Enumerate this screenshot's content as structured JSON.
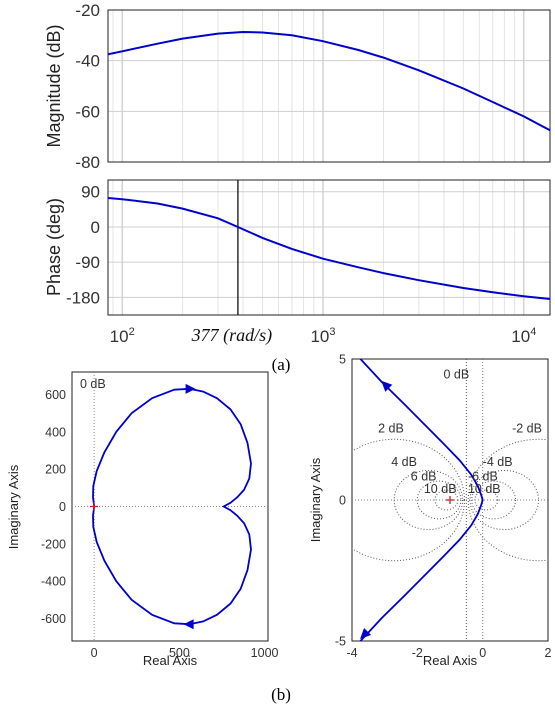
{
  "colors": {
    "curve": "#0000CC",
    "critical": "#cc2222",
    "grid": "#cfcfcf",
    "axis": "#222222"
  },
  "captions": {
    "a": "(a)",
    "b": "(b)"
  },
  "chart_data": [
    {
      "id": "bode-magnitude",
      "type": "line",
      "ylabel": "Magnitude (dB)",
      "ylim": [
        -80,
        -20
      ],
      "yticks": [
        "-20",
        "-40",
        "-60",
        "-80"
      ],
      "xscale": "log",
      "xlim": [
        85,
        13500
      ],
      "grid": true,
      "series": [
        {
          "x": [
            85,
            100,
            150,
            200,
            300,
            400,
            500,
            700,
            1000,
            1500,
            2000,
            3000,
            5000,
            7000,
            10000,
            13500
          ],
          "y": [
            -37.5,
            -36.3,
            -33.3,
            -31.3,
            -29.3,
            -28.7,
            -28.9,
            -30.0,
            -32.3,
            -35.8,
            -38.8,
            -43.8,
            -51.0,
            -56.3,
            -62.0,
            -67.5
          ]
        }
      ]
    },
    {
      "id": "bode-phase",
      "type": "line",
      "ylabel": "Phase (deg)",
      "ylim": [
        -225,
        120
      ],
      "yticks": [
        "90",
        "0",
        "-90",
        "-180"
      ],
      "xscale": "log",
      "xlim": [
        85,
        13500
      ],
      "xticks": [
        {
          "base": "10",
          "exp": "2"
        },
        {
          "base": "10",
          "exp": "3"
        },
        {
          "base": "10",
          "exp": "4"
        }
      ],
      "grid": true,
      "annotation": {
        "x": 377,
        "text": "377 (rad/s)"
      },
      "series": [
        {
          "x": [
            85,
            100,
            150,
            200,
            300,
            377,
            500,
            700,
            1000,
            1500,
            2000,
            3000,
            5000,
            7000,
            10000,
            13500
          ],
          "y": [
            74,
            71,
            60,
            47,
            22,
            0,
            -28,
            -56,
            -81,
            -103,
            -118,
            -136,
            -156,
            -167,
            -177,
            -184
          ]
        }
      ]
    },
    {
      "id": "nyquist-full",
      "type": "line",
      "xlabel": "Real Axis",
      "ylabel": "Imaginary Axis",
      "xlim": [
        -130,
        1020
      ],
      "ylim": [
        -720,
        720
      ],
      "xticks": [
        "0",
        "500",
        "1000"
      ],
      "yticks": [
        "600",
        "400",
        "200",
        "0",
        "-200",
        "-400",
        "-600"
      ],
      "grid_label": "0 dB",
      "series": [
        {
          "x": [
            0,
            -7,
            -5,
            15,
            60,
            130,
            220,
            340,
            470,
            560,
            640,
            720,
            800,
            860,
            900,
            920,
            910,
            880,
            840,
            800,
            760,
            800,
            840,
            880,
            910,
            920,
            900,
            860,
            800,
            720,
            640,
            560,
            470,
            340,
            220,
            130,
            60,
            15,
            -5,
            -7,
            0
          ],
          "y": [
            0,
            50,
            110,
            190,
            290,
            400,
            500,
            580,
            625,
            630,
            615,
            580,
            520,
            440,
            340,
            230,
            150,
            90,
            50,
            20,
            0,
            -20,
            -50,
            -90,
            -150,
            -230,
            -340,
            -440,
            -520,
            -580,
            -615,
            -630,
            -625,
            -580,
            -500,
            -400,
            -290,
            -190,
            -110,
            -50,
            0
          ]
        }
      ]
    },
    {
      "id": "nyquist-zoom",
      "type": "line",
      "xlabel": "Real Axis",
      "ylabel": "Imaginary Axis",
      "xlim": [
        -4,
        2
      ],
      "ylim": [
        -5,
        5
      ],
      "xticks": [
        "-4",
        "-2",
        "0",
        "2"
      ],
      "yticks": [
        "5",
        "0",
        "-5"
      ],
      "m_circle_labels": [
        "0 dB",
        "2 dB",
        "-2 dB",
        "4 dB",
        "-4 dB",
        "6 dB",
        "-6 dB",
        "10 dB",
        "10 dB"
      ],
      "series": [
        {
          "x": [
            -3.9,
            -3.1,
            -2.4,
            -1.8,
            -1.2,
            -0.7,
            -0.35,
            -0.15,
            -0.05,
            0.0,
            -0.05,
            -0.15,
            -0.35,
            -0.7,
            -1.2,
            -1.8,
            -2.4,
            -3.1,
            -3.9
          ],
          "y": [
            5.2,
            4.2,
            3.4,
            2.7,
            2.0,
            1.4,
            0.9,
            0.5,
            0.2,
            0.0,
            -0.2,
            -0.5,
            -0.9,
            -1.4,
            -2.0,
            -2.7,
            -3.4,
            -4.2,
            -5.2
          ]
        }
      ]
    }
  ]
}
